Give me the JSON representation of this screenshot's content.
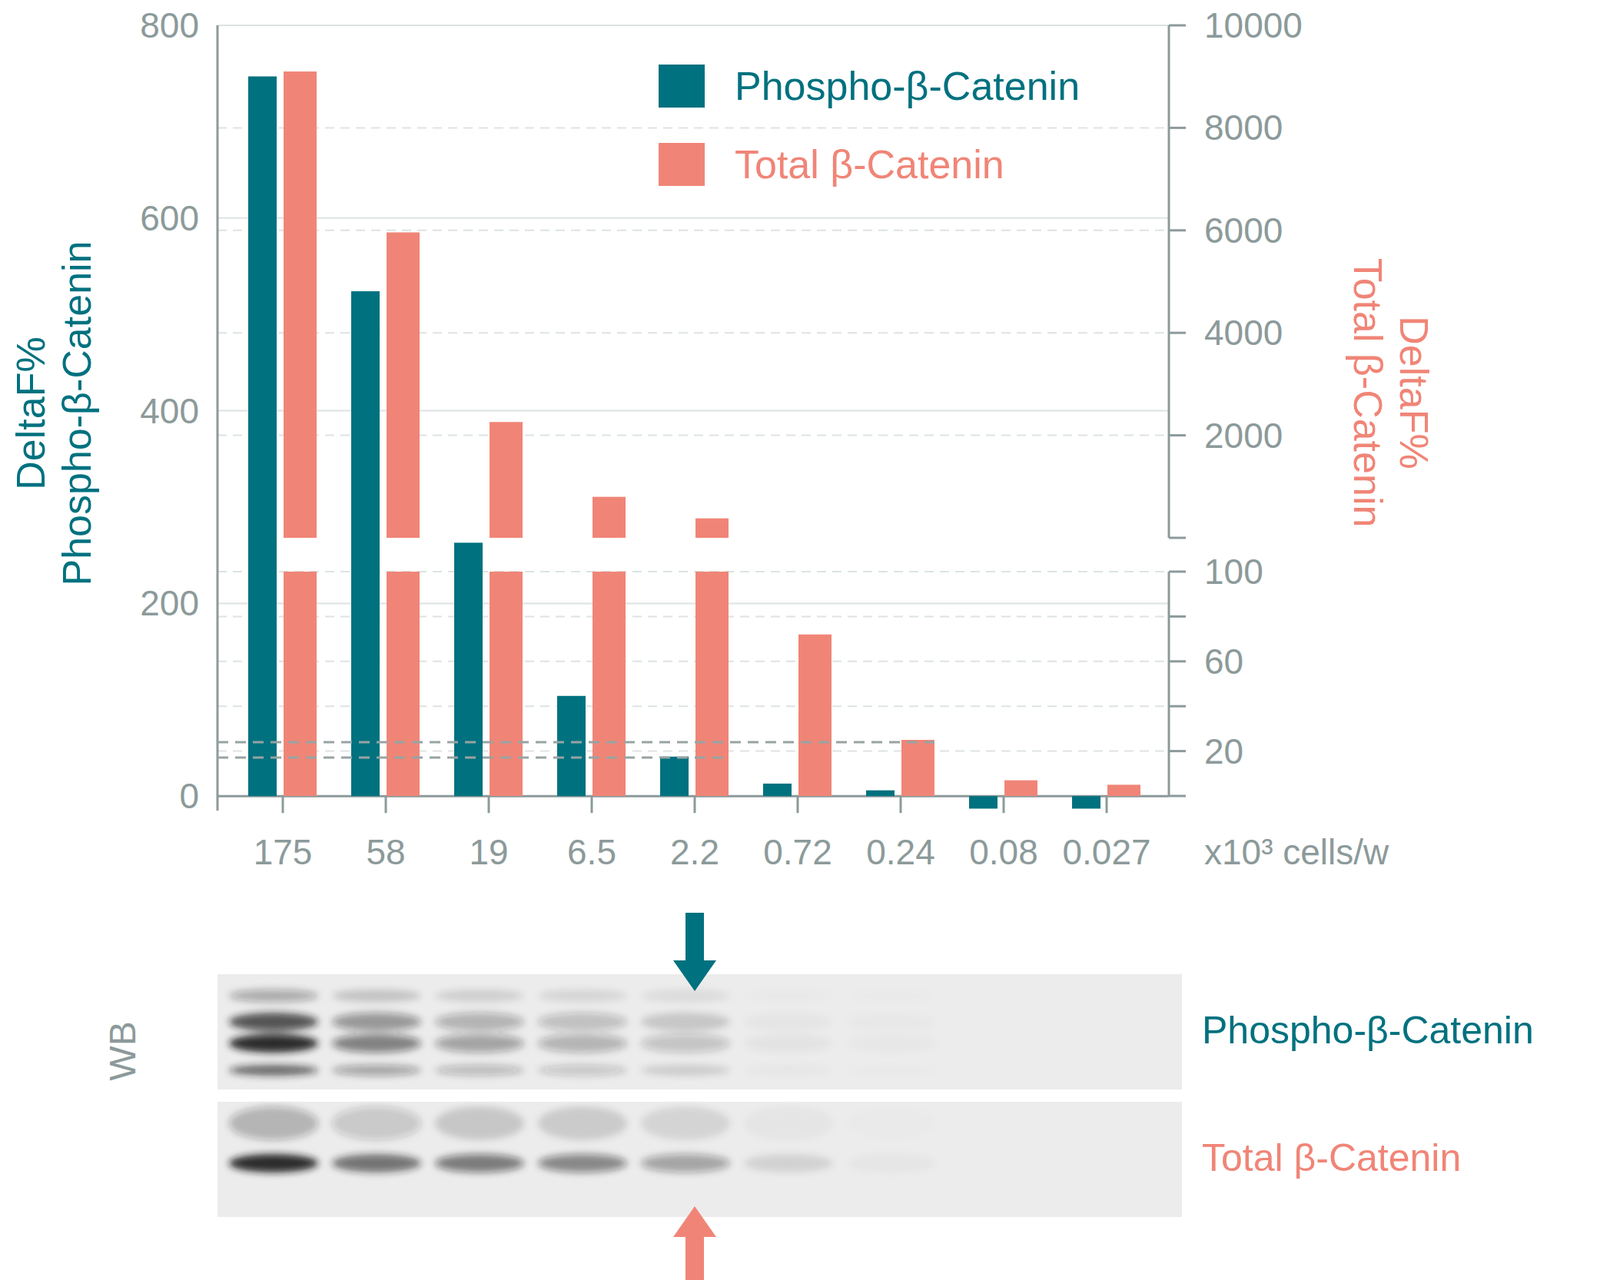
{
  "chart_data": {
    "type": "bar",
    "categories": [
      "175",
      "58",
      "19",
      "6.5",
      "2.2",
      "0.72",
      "0.24",
      "0.08",
      "0.027"
    ],
    "x_label": "x10³ cells/w",
    "y_label": [
      "DeltaF%",
      "Phospho-β-Catenin"
    ],
    "y2_label": [
      "DeltaF%",
      "Total β-Catenin"
    ],
    "ylim": [
      -15,
      800
    ],
    "yticks": [
      0,
      200,
      400,
      600,
      800
    ],
    "y2_segments": [
      {
        "y2lim": [
          0,
          100
        ],
        "y2ticks": [
          20,
          60,
          100
        ]
      },
      {
        "y2lim": [
          0,
          10000
        ],
        "y2ticks": [
          2000,
          4000,
          6000,
          8000,
          10000
        ]
      }
    ],
    "series": [
      {
        "name": "Phospho-β-Catenin",
        "color": "#00717f",
        "values": [
          747,
          524,
          263,
          104,
          41,
          13,
          6,
          -13,
          -13
        ]
      },
      {
        "name": "Total β-Catenin",
        "color": "#f08577",
        "axis": "y2",
        "values": [
          9100,
          5960,
          2260,
          800,
          380,
          72,
          25,
          7,
          5
        ]
      }
    ],
    "reference_lines": [
      {
        "value": 24,
        "axis": "y2",
        "until": "0.24"
      },
      {
        "value": 40,
        "axis": "y",
        "until": "2.2"
      }
    ],
    "legend": "top-right",
    "grid": true,
    "blot": {
      "label": "WB",
      "rows": [
        "Phospho-β-Catenin",
        "Total β-Catenin"
      ]
    }
  }
}
